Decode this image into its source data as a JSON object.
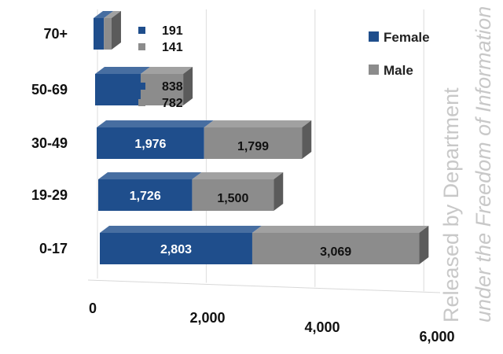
{
  "chart_data": {
    "type": "bar",
    "orientation": "horizontal",
    "stacked": true,
    "three_d": true,
    "categories": [
      "70+",
      "50-69",
      "30-49",
      "19-29",
      "0-17"
    ],
    "series": [
      {
        "name": "Female",
        "values": [
          191,
          838,
          1976,
          1726,
          2803
        ],
        "color": "#1f4e8c"
      },
      {
        "name": "Male",
        "values": [
          141,
          782,
          1799,
          1500,
          3069
        ],
        "color": "#8c8c8c"
      }
    ],
    "data_labels": {
      "Female": [
        "191",
        "838",
        "1,976",
        "1,726",
        "2,803"
      ],
      "Male": [
        "141",
        "782",
        "1,799",
        "1,500",
        "3,069"
      ]
    },
    "x_ticks": [
      "0",
      "2,000",
      "4,000",
      "6,000"
    ],
    "xlim": [
      0,
      6000
    ],
    "grid": true,
    "legend_position": "top-right",
    "title": "",
    "xlabel": "",
    "ylabel": ""
  },
  "watermark": {
    "line1": "Released by Department",
    "line2": "under the Freedom of Information"
  }
}
